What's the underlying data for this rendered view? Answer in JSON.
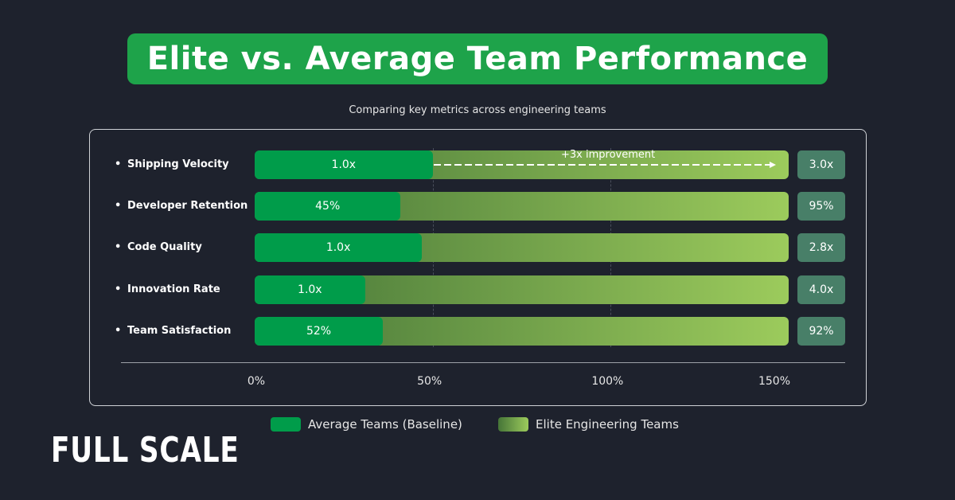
{
  "title": "Elite vs. Average Team Performance",
  "subtitle": "Comparing key metrics across engineering teams",
  "logo": "FULL SCALE",
  "chart_data": {
    "type": "bar",
    "orientation": "horizontal",
    "categories": [
      "Shipping Velocity",
      "Developer Retention",
      "Code Quality",
      "Innovation Rate",
      "Team Satisfaction"
    ],
    "xlim": [
      0,
      150
    ],
    "x_ticks": [
      "0%",
      "50%",
      "100%",
      "150%"
    ],
    "grid": true,
    "legend_position": "bottom",
    "series": [
      {
        "name": "Average Teams (Baseline)",
        "values": [
          50,
          41,
          47,
          31,
          36
        ],
        "labels": [
          "1.0x",
          "45%",
          "1.0x",
          "1.0x",
          "52%"
        ],
        "color": "#009c4a"
      },
      {
        "name": "Elite Engineering Teams",
        "values": [
          150,
          150,
          150,
          150,
          150
        ],
        "labels": [
          "3.0x",
          "95%",
          "2.8x",
          "4.0x",
          "92%"
        ],
        "gradient": [
          "#467538",
          "#9ccb5c"
        ]
      }
    ],
    "annotation": "+3x improvement"
  },
  "colors": {
    "background": "#1e222d",
    "title_bg": "#1ea34a",
    "value_box": "#487f68"
  }
}
